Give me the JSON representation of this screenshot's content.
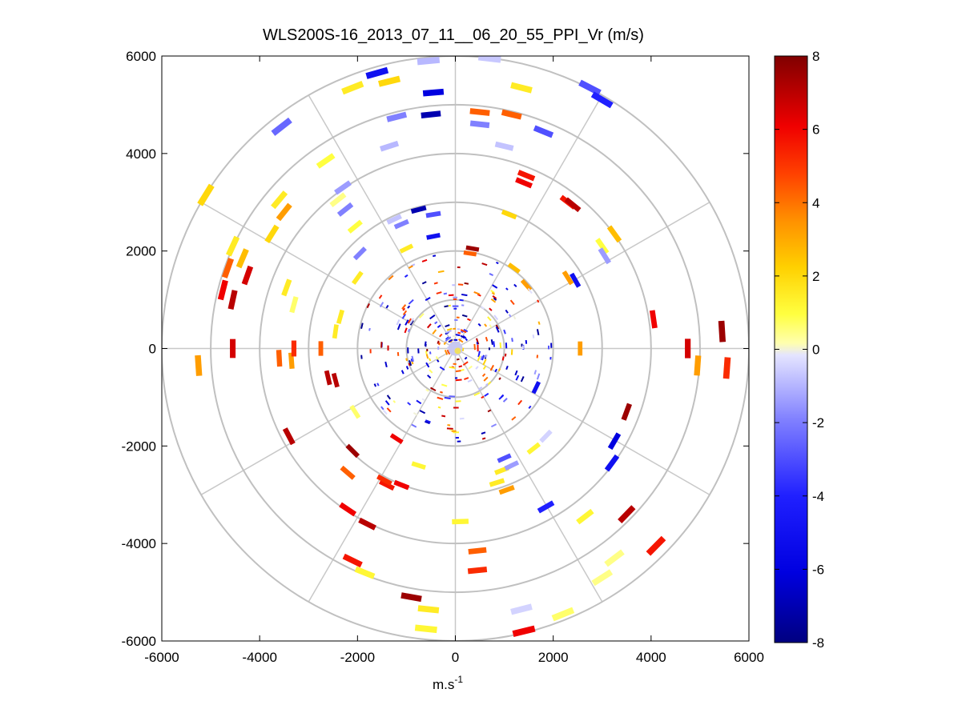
{
  "chart_data": {
    "type": "polar-ppi",
    "title": "WLS200S-16_2013_07_11__06_20_55_PPI_Vr (m/s)",
    "xlabel": "m.s",
    "xlabel_superscript": "-1",
    "ylabel": "",
    "xlim": [
      -6000,
      6000
    ],
    "ylim": [
      -6000,
      6000
    ],
    "xticks": [
      "-6000",
      "-4000",
      "-2000",
      "0",
      "2000",
      "4000",
      "6000"
    ],
    "yticks": [
      "6000",
      "4000",
      "2000",
      "0",
      "-2000",
      "-4000",
      "-6000"
    ],
    "range_rings_m": [
      1000,
      2000,
      3000,
      4000,
      5000,
      6000
    ],
    "spokes_deg": [
      0,
      30,
      60,
      90,
      120,
      150,
      180,
      210,
      240,
      270,
      300,
      330
    ],
    "colorbar": {
      "min": -8,
      "max": 8,
      "ticks": [
        "8",
        "6",
        "4",
        "2",
        "0",
        "-2",
        "-4",
        "-6",
        "-8"
      ],
      "colormap": "blue-white-yellow-red",
      "colors": {
        "neg_low": "#000080",
        "neg_mid": "#0000ff",
        "neg_high": "#dcdcff",
        "pos_low": "#ffff80",
        "pos_mid": "#ff8c00",
        "pos_high": "#800000"
      }
    },
    "series": [
      {
        "name": "outer-ring",
        "values": [
          {
            "x": -450,
            "y": 5250,
            "v": -6
          },
          {
            "x": -1600,
            "y": 5650,
            "v": -5
          },
          {
            "x": -1350,
            "y": 5480,
            "v": 2
          },
          {
            "x": -2100,
            "y": 5350,
            "v": 1.5
          },
          {
            "x": -550,
            "y": 5900,
            "v": -1
          },
          {
            "x": 700,
            "y": 5950,
            "v": -0.7
          },
          {
            "x": 1350,
            "y": 5350,
            "v": 1.5
          },
          {
            "x": 2750,
            "y": 5350,
            "v": -3
          },
          {
            "x": 3000,
            "y": 5100,
            "v": -4
          },
          {
            "x": -3550,
            "y": 4550,
            "v": -2.5
          },
          {
            "x": -5100,
            "y": 3150,
            "v": 2
          },
          {
            "x": -4550,
            "y": 2100,
            "v": 1.5
          },
          {
            "x": -4650,
            "y": 1650,
            "v": 4
          },
          {
            "x": -4750,
            "y": 1200,
            "v": 6
          },
          {
            "x": -4550,
            "y": 1000,
            "v": 7
          },
          {
            "x": -4250,
            "y": 1500,
            "v": 6.5
          },
          {
            "x": -4350,
            "y": 1850,
            "v": 2.5
          },
          {
            "x": -4550,
            "y": 0,
            "v": 6.5
          },
          {
            "x": -5250,
            "y": -350,
            "v": 3
          },
          {
            "x": 5450,
            "y": 350,
            "v": 7.5
          },
          {
            "x": 5550,
            "y": -400,
            "v": 5
          },
          {
            "x": 4950,
            "y": -350,
            "v": 3
          },
          {
            "x": 4750,
            "y": 0,
            "v": 6.5
          },
          {
            "x": 4050,
            "y": 600,
            "v": 6
          },
          {
            "x": 3500,
            "y": -1300,
            "v": 7.5
          },
          {
            "x": 3500,
            "y": -3400,
            "v": 7
          },
          {
            "x": 4100,
            "y": -4050,
            "v": 5.5
          },
          {
            "x": 3250,
            "y": -4300,
            "v": 0.5
          },
          {
            "x": 3000,
            "y": -4700,
            "v": 0.5
          },
          {
            "x": 2200,
            "y": -5450,
            "v": 0.7
          },
          {
            "x": 1400,
            "y": -5800,
            "v": 6
          },
          {
            "x": 1350,
            "y": -5350,
            "v": -0.5
          },
          {
            "x": -550,
            "y": -5350,
            "v": 1.5
          },
          {
            "x": -600,
            "y": -5750,
            "v": 1.2
          },
          {
            "x": -900,
            "y": -5100,
            "v": 7.5
          },
          {
            "x": -2100,
            "y": -4350,
            "v": 5.5
          },
          {
            "x": -1850,
            "y": -4600,
            "v": 1.2
          },
          {
            "x": -3400,
            "y": -1800,
            "v": 7
          }
        ]
      },
      {
        "name": "middle-ring",
        "values": [
          {
            "x": -1200,
            "y": 4750,
            "v": -2
          },
          {
            "x": -500,
            "y": 4800,
            "v": -7
          },
          {
            "x": -1350,
            "y": 4150,
            "v": -1
          },
          {
            "x": 500,
            "y": 4850,
            "v": 4
          },
          {
            "x": 1150,
            "y": 4800,
            "v": 4
          },
          {
            "x": 500,
            "y": 4600,
            "v": -2
          },
          {
            "x": 1000,
            "y": 4150,
            "v": -0.8
          },
          {
            "x": 1800,
            "y": 4450,
            "v": -3
          },
          {
            "x": -2650,
            "y": 3850,
            "v": 1
          },
          {
            "x": -3600,
            "y": 3050,
            "v": 1.5
          },
          {
            "x": -3500,
            "y": 2800,
            "v": 3
          },
          {
            "x": -3750,
            "y": 2350,
            "v": 2
          },
          {
            "x": -3450,
            "y": 1250,
            "v": 1.5
          },
          {
            "x": -3300,
            "y": 900,
            "v": 0.7
          },
          {
            "x": -3600,
            "y": -200,
            "v": 4
          },
          {
            "x": -3350,
            "y": -250,
            "v": 3
          },
          {
            "x": -3300,
            "y": 0,
            "v": 5
          },
          {
            "x": -2600,
            "y": -600,
            "v": 7
          },
          {
            "x": 3250,
            "y": 2350,
            "v": 2.5
          },
          {
            "x": 3000,
            "y": 2100,
            "v": 1
          },
          {
            "x": 3050,
            "y": 1900,
            "v": -1.5
          },
          {
            "x": 2300,
            "y": 3000,
            "v": 5.5
          },
          {
            "x": 1450,
            "y": 3550,
            "v": 5.5
          },
          {
            "x": 1400,
            "y": 3400,
            "v": 6
          },
          {
            "x": 2450,
            "y": 1400,
            "v": -5
          },
          {
            "x": 2300,
            "y": 1450,
            "v": 3
          },
          {
            "x": 2550,
            "y": 0,
            "v": 3
          },
          {
            "x": 3200,
            "y": -2350,
            "v": -5
          },
          {
            "x": 2650,
            "y": -3450,
            "v": 1.2
          },
          {
            "x": 1850,
            "y": -3250,
            "v": -4
          },
          {
            "x": 450,
            "y": -4150,
            "v": 4
          },
          {
            "x": 450,
            "y": -4550,
            "v": 5
          },
          {
            "x": -2200,
            "y": -2550,
            "v": 4
          },
          {
            "x": -2200,
            "y": -3300,
            "v": 6
          },
          {
            "x": -1800,
            "y": -3600,
            "v": 7
          },
          {
            "x": -1400,
            "y": -2800,
            "v": 5.5
          }
        ]
      },
      {
        "name": "inner-ring",
        "values": [
          {
            "x": -2300,
            "y": 3300,
            "v": -1.5
          },
          {
            "x": -2400,
            "y": 3050,
            "v": 0.5
          },
          {
            "x": -2250,
            "y": 2850,
            "v": -2
          },
          {
            "x": -2050,
            "y": 2500,
            "v": 1
          },
          {
            "x": -1250,
            "y": 2650,
            "v": -0.8
          },
          {
            "x": -750,
            "y": 2850,
            "v": -7
          },
          {
            "x": -450,
            "y": 2750,
            "v": -3
          },
          {
            "x": -1100,
            "y": 2550,
            "v": -2
          },
          {
            "x": -450,
            "y": 2300,
            "v": -5
          },
          {
            "x": -1000,
            "y": 2050,
            "v": 1.5
          },
          {
            "x": -1950,
            "y": 1950,
            "v": -2
          },
          {
            "x": -2000,
            "y": 1450,
            "v": 1.5
          },
          {
            "x": -2350,
            "y": 650,
            "v": 1.5
          },
          {
            "x": -2450,
            "y": 350,
            "v": 1.5
          },
          {
            "x": -2750,
            "y": 0,
            "v": 4
          },
          {
            "x": -2450,
            "y": -650,
            "v": 7
          },
          {
            "x": -2050,
            "y": -1300,
            "v": 0.7
          },
          {
            "x": -1200,
            "y": -1850,
            "v": 6
          },
          {
            "x": -750,
            "y": -2400,
            "v": 1.2
          },
          {
            "x": -1450,
            "y": -2700,
            "v": 5
          },
          {
            "x": -1100,
            "y": -2800,
            "v": 6
          },
          {
            "x": 350,
            "y": 2050,
            "v": 7.5
          },
          {
            "x": 300,
            "y": 1950,
            "v": 4
          },
          {
            "x": 1100,
            "y": 2750,
            "v": 2
          },
          {
            "x": 850,
            "y": -2750,
            "v": 1.5
          },
          {
            "x": 1050,
            "y": -2900,
            "v": 3
          },
          {
            "x": 100,
            "y": -3550,
            "v": 1.2
          },
          {
            "x": 950,
            "y": -2500,
            "v": 1.5
          },
          {
            "x": 1150,
            "y": -2400,
            "v": -1.5
          },
          {
            "x": 1600,
            "y": -2050,
            "v": 1.2
          },
          {
            "x": 1850,
            "y": -1800,
            "v": -0.5
          },
          {
            "x": 1000,
            "y": -2250,
            "v": -3
          },
          {
            "x": 1450,
            "y": 1300,
            "v": 3
          },
          {
            "x": 1200,
            "y": 1650,
            "v": 2.5
          },
          {
            "x": 1650,
            "y": -800,
            "v": -5
          },
          {
            "x": 2400,
            "y": 2950,
            "v": 7
          },
          {
            "x": -2100,
            "y": -2100,
            "v": 7.5
          },
          {
            "x": 3250,
            "y": -1900,
            "v": -6
          }
        ]
      }
    ]
  }
}
